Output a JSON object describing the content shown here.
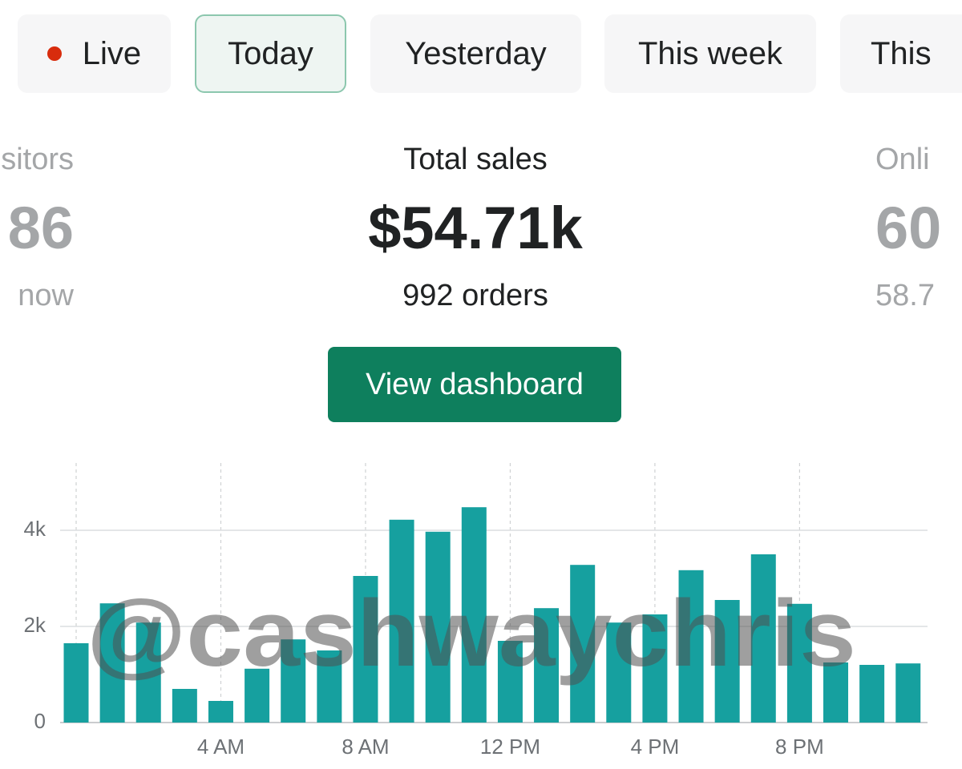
{
  "tabs": [
    "Live",
    "Today",
    "Yesterday",
    "This week",
    "This"
  ],
  "stats": {
    "left": {
      "label": "sitors",
      "value": "86",
      "sub": "now"
    },
    "center": {
      "label": "Total sales",
      "value": "$54.71k",
      "sub": "992 orders"
    },
    "right": {
      "label": "Onli",
      "value": "60",
      "sub": "58.7"
    }
  },
  "button": "View dashboard",
  "watermark": "@cashwaychris",
  "chart_data": {
    "type": "bar",
    "categories": [
      null,
      null,
      null,
      null,
      "4 AM",
      null,
      null,
      null,
      "8 AM",
      null,
      null,
      null,
      "12 PM",
      null,
      null,
      null,
      "4 PM",
      null,
      null,
      null,
      "8 PM",
      null,
      null,
      null
    ],
    "values": [
      1650,
      2480,
      2080,
      700,
      450,
      1120,
      1730,
      1500,
      3050,
      4220,
      3970,
      4480,
      1700,
      2380,
      3280,
      2080,
      2250,
      3170,
      2550,
      3500,
      2470,
      1250,
      1200,
      1230
    ],
    "color": "#16a09f",
    "ylim": [
      0,
      5400
    ],
    "yticks": [
      0,
      {
        "value": 2000,
        "label": "2k"
      },
      {
        "value": 4000,
        "label": "4k"
      }
    ],
    "grid": true
  }
}
